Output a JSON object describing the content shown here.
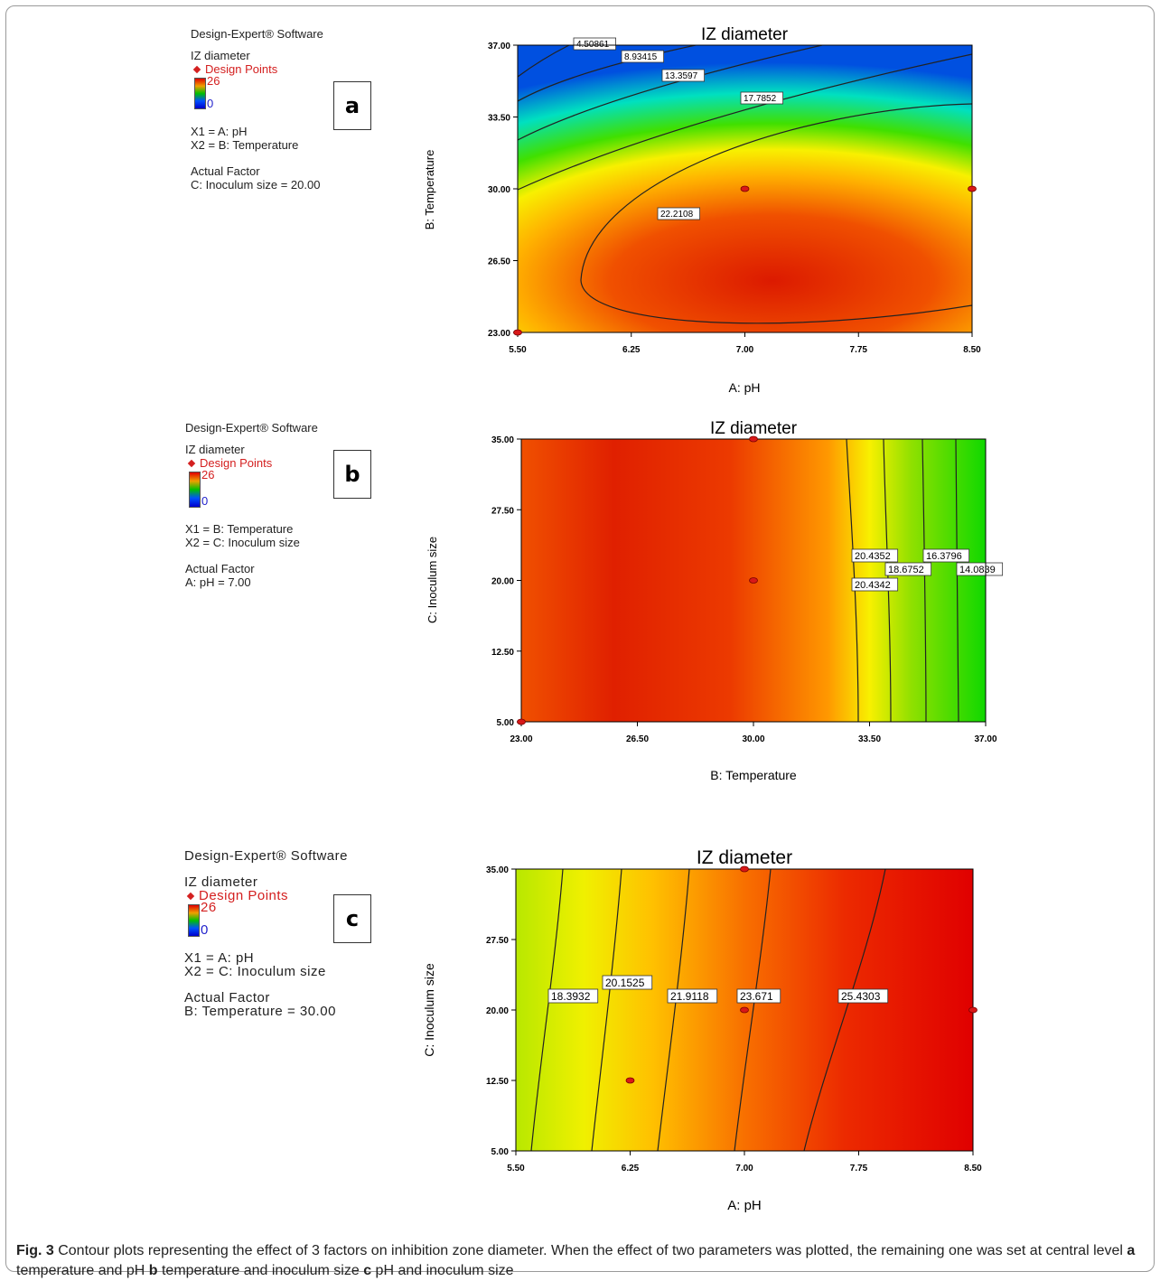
{
  "panels": [
    {
      "id": "a",
      "software": "Design-Expert® Software",
      "response": "IZ diameter",
      "design_points_label": "Design Points",
      "scale_high": "26",
      "scale_low": "0",
      "x1": "X1 = A: pH",
      "x2": "X2 = B: Temperature",
      "actual_factor_title": "Actual Factor",
      "actual_factor": "C: Inoculum size = 20.00",
      "panel_tag": "a"
    },
    {
      "id": "b",
      "software": "Design-Expert® Software",
      "response": "IZ diameter",
      "design_points_label": "Design Points",
      "scale_high": "26",
      "scale_low": "0",
      "x1": "X1 = B: Temperature",
      "x2": "X2 = C: Inoculum size",
      "actual_factor_title": "Actual Factor",
      "actual_factor": "A: pH = 7.00",
      "panel_tag": "b"
    },
    {
      "id": "c",
      "software": "Design-Expert® Software",
      "response": "IZ diameter",
      "design_points_label": "Design Points",
      "scale_high": "26",
      "scale_low": "0",
      "x1": "X1 = A: pH",
      "x2": "X2 = C: Inoculum size",
      "actual_factor_title": "Actual Factor",
      "actual_factor": "B: Temperature = 30.00",
      "panel_tag": "c"
    }
  ],
  "chart_data": [
    {
      "type": "heatmap",
      "title": "IZ diameter",
      "xlabel": "A: pH",
      "ylabel": "B: Temperature",
      "xlim": [
        5.5,
        8.5
      ],
      "ylim": [
        23.0,
        37.0
      ],
      "x_ticks": [
        "5.50",
        "6.25",
        "7.00",
        "7.75",
        "8.50"
      ],
      "y_ticks": [
        "23.00",
        "26.50",
        "30.00",
        "33.50",
        "37.00"
      ],
      "color_scale": {
        "low": 0,
        "high": 26,
        "low_color": "#0000cc",
        "high_color": "#e00000"
      },
      "contour_labels": [
        "4.50861",
        "8.93415",
        "13.3597",
        "17.7852",
        "22.2108"
      ],
      "design_points": [
        {
          "x": 7.0,
          "y": 30.0
        },
        {
          "x": 8.5,
          "y": 30.0
        },
        {
          "x": 5.5,
          "y": 23.0
        }
      ]
    },
    {
      "type": "heatmap",
      "title": "IZ diameter",
      "xlabel": "B: Temperature",
      "ylabel": "C: Inoculum size",
      "xlim": [
        23.0,
        37.0
      ],
      "ylim": [
        5.0,
        35.0
      ],
      "x_ticks": [
        "23.00",
        "26.50",
        "30.00",
        "33.50",
        "37.00"
      ],
      "y_ticks": [
        "5.00",
        "12.50",
        "20.00",
        "27.50",
        "35.00"
      ],
      "color_scale": {
        "low": 0,
        "high": 26,
        "low_color": "#0000cc",
        "high_color": "#e00000"
      },
      "contour_labels": [
        "20.4352",
        "18.6752",
        "20.4342",
        "16.3796",
        "14.0839"
      ],
      "design_points": [
        {
          "x": 30.0,
          "y": 35.0
        },
        {
          "x": 30.0,
          "y": 20.0
        },
        {
          "x": 23.0,
          "y": 5.0
        }
      ]
    },
    {
      "type": "heatmap",
      "title": "IZ diameter",
      "xlabel": "A: pH",
      "ylabel": "C: Inoculum size",
      "xlim": [
        5.5,
        8.5
      ],
      "ylim": [
        5.0,
        35.0
      ],
      "x_ticks": [
        "5.50",
        "6.25",
        "7.00",
        "7.75",
        "8.50"
      ],
      "y_ticks": [
        "5.00",
        "12.50",
        "20.00",
        "27.50",
        "35.00"
      ],
      "color_scale": {
        "low": 0,
        "high": 26,
        "low_color": "#0000cc",
        "high_color": "#e00000"
      },
      "contour_labels": [
        "18.3932",
        "20.1525",
        "21.9118",
        "23.671",
        "25.4303"
      ],
      "design_points": [
        {
          "x": 7.0,
          "y": 35.0
        },
        {
          "x": 7.0,
          "y": 20.0
        },
        {
          "x": 6.25,
          "y": 12.5
        },
        {
          "x": 8.5,
          "y": 20.0
        }
      ]
    }
  ],
  "caption": {
    "fig_label": "Fig. 3",
    "text_1": " Contour plots representing the effect of 3 factors on inhibition zone diameter. When the effect of two parameters was plotted, the remaining one was set at central level ",
    "a_label": "a",
    "a_text": " temperature and pH ",
    "b_label": "b",
    "b_text": " temperature and inoculum size ",
    "c_label": "c",
    "c_text": " pH and inoculum size"
  }
}
